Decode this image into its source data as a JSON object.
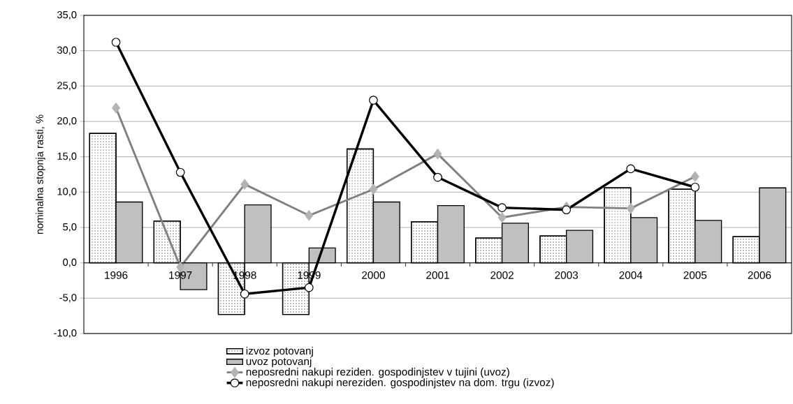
{
  "chart_data": {
    "type": "bar",
    "ylabel": "nominalna stopnja rasti, %",
    "categories": [
      "1996",
      "1997",
      "1998",
      "1999",
      "2000",
      "2001",
      "2002",
      "2003",
      "2004",
      "2005",
      "2006"
    ],
    "series": [
      {
        "name": "izvoz potovanj",
        "color": "#ffffff",
        "values": [
          18.3,
          5.9,
          -7.3,
          -7.3,
          16.1,
          5.8,
          3.5,
          3.8,
          10.6,
          10.4,
          3.7
        ]
      },
      {
        "name": "uvoz potovanj",
        "color": "#c0c0c0",
        "values": [
          8.6,
          -3.8,
          8.2,
          2.1,
          8.6,
          8.1,
          5.6,
          4.6,
          6.4,
          6.0,
          10.6
        ]
      },
      {
        "name": "neposredni nakupi reziden. gospodinjstev v tujini (uvoz)",
        "type": "line",
        "color": "#808080",
        "marker": "diamond",
        "values": [
          21.9,
          -0.6,
          11.1,
          6.7,
          10.4,
          15.4,
          6.4,
          7.9,
          7.7,
          12.2,
          null
        ]
      },
      {
        "name": "neposredni nakupi nereziden. gospodinjstev na dom. trgu (izvoz)",
        "type": "line",
        "color": "#000000",
        "marker": "circle",
        "values": [
          31.2,
          12.8,
          -4.4,
          -3.5,
          23.0,
          12.1,
          7.8,
          7.5,
          13.3,
          10.7,
          null
        ]
      }
    ],
    "ylim": [
      -10,
      35
    ],
    "yticks": [
      {
        "value": -10,
        "label": "-10,0"
      },
      {
        "value": -5,
        "label": "-5,0"
      },
      {
        "value": 0,
        "label": "0,0"
      },
      {
        "value": 5,
        "label": "5,0"
      },
      {
        "value": 10,
        "label": "10,0"
      },
      {
        "value": 15,
        "label": "15,0"
      },
      {
        "value": 20,
        "label": "20,0"
      },
      {
        "value": 25,
        "label": "25,0"
      },
      {
        "value": 30,
        "label": "30,0"
      },
      {
        "value": 35,
        "label": "35,0"
      }
    ],
    "grid": true,
    "legend": "bottom"
  }
}
